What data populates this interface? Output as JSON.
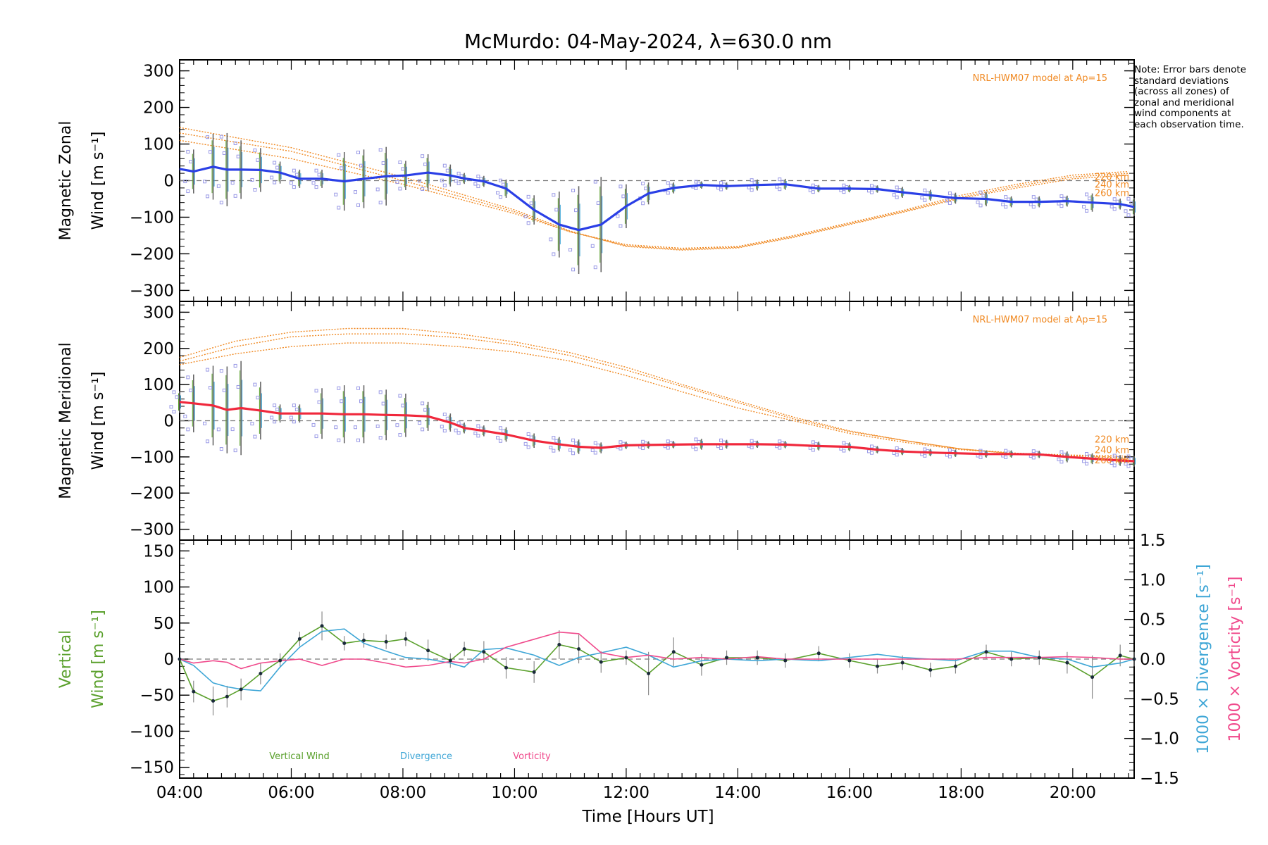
{
  "title": "McMurdo: 04-May-2024, λ=630.0 nm",
  "note": "Note: Error bars denote standard deviations (across all zones) of zonal and meridional wind components at each observation time.",
  "colors": {
    "zonal": "#2a3fe6",
    "meridional": "#f0283c",
    "model": "#f08a24",
    "vertical": "#5aa02c",
    "divergence": "#3ea6d6",
    "vorticity": "#f04a8c",
    "scatter": "#9a9ae6",
    "errorbar": "#666666",
    "baseline": "#7a7a7a"
  },
  "xaxis": {
    "label": "Time [Hours UT]",
    "ticks": [
      "04:00",
      "06:00",
      "08:00",
      "10:00",
      "12:00",
      "14:00",
      "16:00",
      "18:00",
      "20:00"
    ],
    "tick_hours": [
      4,
      6,
      8,
      10,
      12,
      14,
      16,
      18,
      20
    ],
    "range": [
      4,
      21.1
    ]
  },
  "chart_data": [
    {
      "type": "line",
      "name": "zonal",
      "ylabel_top": "Magnetic Zonal",
      "ylabel_bottom": "Wind [m s⁻¹]",
      "ylim": [
        -330,
        330
      ],
      "yticks": [
        300,
        200,
        100,
        0,
        -100,
        -200,
        -300
      ],
      "model_label": "NRL-HWM07 model at Ap=15",
      "model_altitudes": [
        "220 km",
        "240 km",
        "260 km"
      ],
      "x": [
        4.0,
        4.25,
        4.6,
        4.85,
        5.1,
        5.45,
        5.8,
        6.15,
        6.55,
        6.95,
        7.3,
        7.7,
        8.05,
        8.45,
        8.85,
        9.1,
        9.45,
        9.85,
        10.35,
        10.8,
        11.15,
        11.55,
        12.0,
        12.4,
        12.85,
        13.35,
        13.8,
        14.35,
        14.85,
        15.45,
        16.0,
        16.5,
        16.95,
        17.45,
        17.9,
        18.45,
        18.9,
        19.4,
        19.9,
        20.35,
        20.85,
        21.1
      ],
      "values": [
        32,
        25,
        38,
        30,
        30,
        29,
        22,
        5,
        5,
        -2,
        5,
        12,
        14,
        22,
        14,
        6,
        -2,
        -22,
        -80,
        -120,
        -135,
        -120,
        -70,
        -35,
        -20,
        -12,
        -15,
        -12,
        -10,
        -22,
        -22,
        -23,
        -32,
        -40,
        -48,
        -50,
        -58,
        -58,
        -56,
        -60,
        -64,
        -72
      ],
      "error": [
        0,
        60,
        90,
        100,
        80,
        60,
        30,
        25,
        25,
        80,
        80,
        80,
        40,
        50,
        30,
        15,
        15,
        25,
        40,
        90,
        120,
        130,
        60,
        30,
        15,
        10,
        10,
        15,
        15,
        10,
        10,
        10,
        15,
        15,
        15,
        20,
        15,
        15,
        15,
        25,
        15,
        25
      ],
      "model_series": [
        {
          "name": "220 km",
          "x": [
            4,
            6,
            8,
            10,
            11,
            12,
            13,
            14,
            15,
            16,
            17,
            18,
            19,
            20,
            21
          ],
          "values": [
            110,
            60,
            -10,
            -90,
            -140,
            -175,
            -185,
            -180,
            -150,
            -115,
            -80,
            -40,
            -10,
            15,
            25
          ]
        },
        {
          "name": "240 km",
          "x": [
            4,
            6,
            8,
            10,
            11,
            12,
            13,
            14,
            15,
            16,
            17,
            18,
            19,
            20,
            21
          ],
          "values": [
            130,
            80,
            0,
            -85,
            -140,
            -178,
            -188,
            -182,
            -153,
            -118,
            -83,
            -45,
            -15,
            10,
            20
          ]
        },
        {
          "name": "260 km",
          "x": [
            4,
            6,
            8,
            10,
            11,
            12,
            13,
            14,
            15,
            16,
            17,
            18,
            19,
            20,
            21
          ],
          "values": [
            145,
            90,
            10,
            -80,
            -138,
            -180,
            -190,
            -184,
            -155,
            -120,
            -85,
            -48,
            -20,
            5,
            15
          ]
        }
      ]
    },
    {
      "type": "line",
      "name": "meridional",
      "ylabel_top": "Magnetic Meridional",
      "ylabel_bottom": "Wind [m s⁻¹]",
      "ylim": [
        -330,
        330
      ],
      "yticks": [
        300,
        200,
        100,
        0,
        -100,
        -200,
        -300
      ],
      "model_label": "NRL-HWM07 model at Ap=15",
      "model_altitudes": [
        "220 km",
        "240 km",
        "260 km"
      ],
      "x": [
        4.0,
        4.25,
        4.6,
        4.85,
        5.1,
        5.45,
        5.8,
        6.15,
        6.55,
        6.95,
        7.3,
        7.7,
        8.05,
        8.45,
        8.85,
        9.1,
        9.45,
        9.85,
        10.35,
        10.8,
        11.15,
        11.55,
        12.0,
        12.4,
        12.85,
        13.35,
        13.8,
        14.35,
        14.85,
        15.45,
        16.0,
        16.5,
        16.95,
        17.45,
        17.9,
        18.45,
        18.9,
        19.4,
        19.9,
        20.35,
        20.85,
        21.1
      ],
      "values": [
        52,
        48,
        42,
        30,
        35,
        28,
        20,
        20,
        20,
        18,
        18,
        16,
        15,
        12,
        -5,
        -20,
        -28,
        -38,
        -55,
        -65,
        -72,
        -75,
        -68,
        -67,
        -66,
        -65,
        -65,
        -65,
        -66,
        -70,
        -72,
        -80,
        -85,
        -88,
        -90,
        -92,
        -92,
        -93,
        -100,
        -105,
        -110,
        -112
      ],
      "error": [
        30,
        80,
        110,
        120,
        130,
        80,
        25,
        25,
        70,
        80,
        80,
        70,
        60,
        40,
        25,
        15,
        15,
        20,
        20,
        20,
        20,
        15,
        10,
        10,
        10,
        15,
        12,
        10,
        10,
        12,
        12,
        10,
        10,
        10,
        10,
        10,
        10,
        10,
        15,
        15,
        15,
        15
      ],
      "model_series": [
        {
          "name": "220 km",
          "x": [
            4,
            5,
            6,
            7,
            8,
            9,
            10,
            11,
            12,
            13,
            14,
            15,
            16,
            17,
            18,
            19,
            20,
            21
          ],
          "values": [
            155,
            185,
            205,
            215,
            215,
            205,
            190,
            165,
            125,
            80,
            35,
            0,
            -35,
            -60,
            -80,
            -90,
            -95,
            -98
          ]
        },
        {
          "name": "240 km",
          "x": [
            4,
            5,
            6,
            7,
            8,
            9,
            10,
            11,
            12,
            13,
            14,
            15,
            16,
            17,
            18,
            19,
            20,
            21
          ],
          "values": [
            165,
            205,
            232,
            240,
            240,
            230,
            210,
            180,
            140,
            95,
            50,
            5,
            -30,
            -55,
            -78,
            -90,
            -97,
            -103
          ]
        },
        {
          "name": "260 km",
          "x": [
            4,
            5,
            6,
            7,
            8,
            9,
            10,
            11,
            12,
            13,
            14,
            15,
            16,
            17,
            18,
            19,
            20,
            21
          ],
          "values": [
            175,
            220,
            245,
            255,
            255,
            240,
            218,
            188,
            148,
            100,
            55,
            10,
            -28,
            -55,
            -78,
            -92,
            -100,
            -108
          ]
        }
      ]
    },
    {
      "type": "line",
      "name": "vertical",
      "ylabel_top": "Vertical",
      "ylabel_bottom": "Wind [m s⁻¹]",
      "ylim": [
        -165,
        165
      ],
      "yticks": [
        150,
        100,
        50,
        0,
        -50,
        -100,
        -150
      ],
      "right_ylim": [
        -1.5,
        1.5
      ],
      "right_yticks": [
        "1.5",
        "1.0",
        "0.5",
        "0.0",
        "−0.5",
        "−1.0",
        "−1.5"
      ],
      "right_ylabel_1": "1000 × Divergence [s⁻¹]",
      "right_ylabel_2": "1000 × Vorticity [s⁻¹]",
      "legend": [
        "Vertical Wind",
        "Divergence",
        "Vorticity"
      ],
      "x": [
        4.0,
        4.25,
        4.6,
        4.85,
        5.1,
        5.45,
        5.8,
        6.15,
        6.55,
        6.95,
        7.3,
        7.7,
        8.05,
        8.45,
        8.85,
        9.1,
        9.45,
        9.85,
        10.35,
        10.8,
        11.15,
        11.55,
        12.0,
        12.4,
        12.85,
        13.35,
        13.8,
        14.35,
        14.85,
        15.45,
        16.0,
        16.5,
        16.95,
        17.45,
        17.9,
        18.45,
        18.9,
        19.4,
        19.9,
        20.35,
        20.85,
        21.1
      ],
      "series": [
        {
          "name": "Vertical Wind",
          "values": [
            0,
            -45,
            -58,
            -52,
            -42,
            -20,
            -2,
            28,
            46,
            22,
            26,
            24,
            28,
            12,
            -2,
            14,
            10,
            -12,
            -18,
            20,
            14,
            -4,
            2,
            -20,
            10,
            -8,
            2,
            2,
            -2,
            8,
            -2,
            -10,
            -5,
            -15,
            -10,
            10,
            0,
            2,
            -5,
            -25,
            5,
            0
          ]
        },
        {
          "name": "Divergence",
          "values": [
            0,
            -0.08,
            -0.3,
            -0.35,
            -0.38,
            -0.4,
            -0.1,
            0.15,
            0.35,
            0.38,
            0.2,
            0.1,
            0.02,
            0.0,
            -0.05,
            -0.1,
            0.12,
            0.14,
            0.05,
            -0.08,
            0.02,
            0.08,
            0.15,
            0.05,
            -0.1,
            -0.02,
            0.0,
            -0.02,
            0.0,
            -0.02,
            0.02,
            0.06,
            0.02,
            0.0,
            -0.02,
            0.1,
            0.1,
            0.02,
            0.0,
            -0.1,
            -0.05,
            0.0
          ]
        },
        {
          "name": "Vorticity",
          "values": [
            0,
            -0.05,
            -0.02,
            -0.04,
            -0.12,
            -0.05,
            -0.02,
            0.0,
            -0.08,
            0.0,
            0.0,
            -0.05,
            -0.1,
            -0.08,
            -0.03,
            -0.05,
            0.0,
            0.15,
            0.25,
            0.34,
            0.32,
            0.08,
            0.02,
            0.05,
            0.0,
            0.02,
            0.0,
            0.03,
            0.0,
            0.0,
            0.0,
            0.0,
            0.0,
            0.0,
            0.0,
            0.02,
            0.02,
            0.02,
            0.03,
            0.02,
            0.0,
            0.0
          ]
        }
      ],
      "error": [
        0,
        15,
        20,
        15,
        15,
        15,
        10,
        10,
        20,
        10,
        10,
        10,
        10,
        15,
        10,
        10,
        15,
        15,
        15,
        20,
        20,
        15,
        10,
        30,
        20,
        15,
        10,
        10,
        10,
        10,
        10,
        10,
        10,
        10,
        10,
        10,
        10,
        10,
        15,
        30,
        15,
        10
      ]
    }
  ]
}
